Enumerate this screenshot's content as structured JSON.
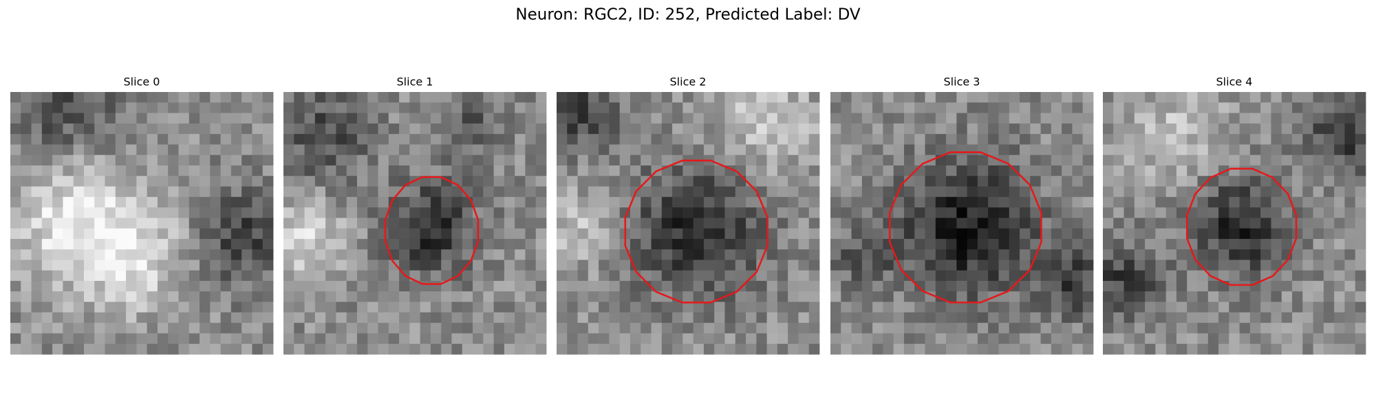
{
  "title": "Neuron: RGC2, ID: 252, Predicted Label: DV",
  "panels": [
    {
      "title": "Slice 0"
    },
    {
      "title": "Slice 1"
    },
    {
      "title": "Slice 2"
    },
    {
      "title": "Slice 3"
    },
    {
      "title": "Slice 4"
    }
  ]
}
